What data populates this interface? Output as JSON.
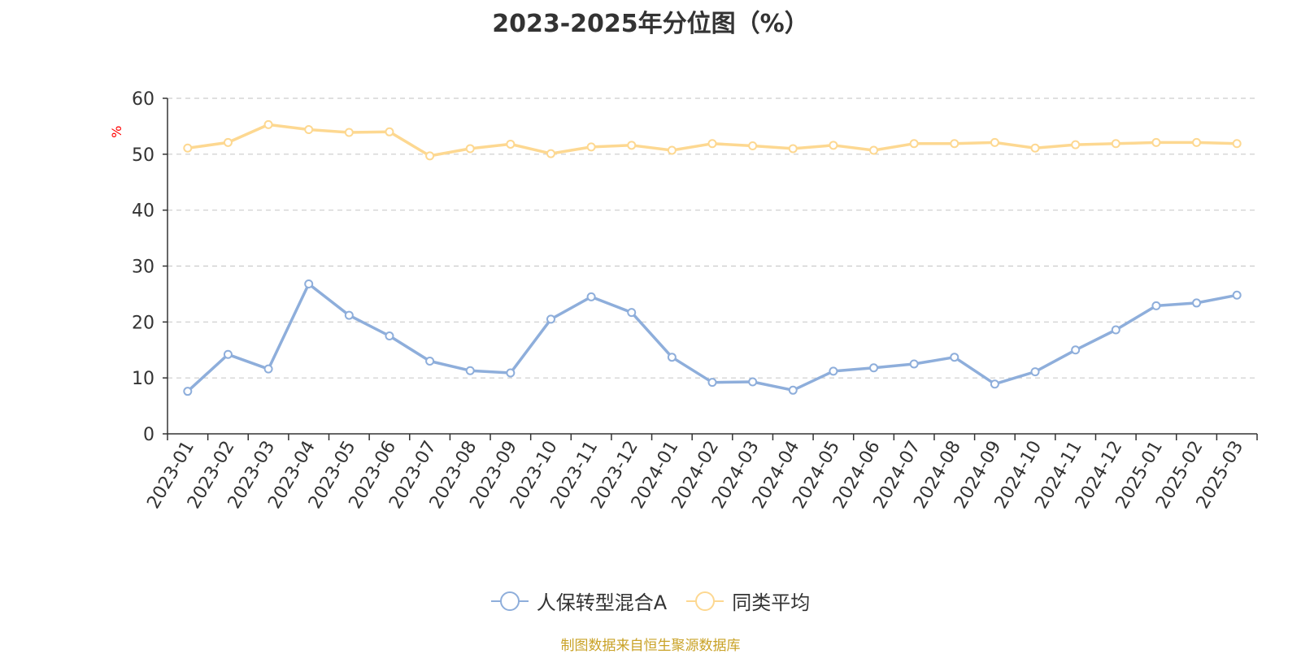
{
  "title": "2023-2025年分位图（%）",
  "source": "制图数据来自恒生聚源数据库",
  "chart_data": {
    "type": "line",
    "title": "2023-2025年分位图（%）",
    "ylabel": "%",
    "ylim": [
      0,
      60
    ],
    "yticks": [
      0,
      10,
      20,
      30,
      40,
      50,
      60
    ],
    "grid": true,
    "legend_position": "bottom-center",
    "categories": [
      "2023-01",
      "2023-02",
      "2023-03",
      "2023-04",
      "2023-05",
      "2023-06",
      "2023-07",
      "2023-08",
      "2023-09",
      "2023-10",
      "2023-11",
      "2023-12",
      "2024-01",
      "2024-02",
      "2024-03",
      "2024-04",
      "2024-05",
      "2024-06",
      "2024-07",
      "2024-08",
      "2024-09",
      "2024-10",
      "2024-11",
      "2024-12",
      "2025-01",
      "2025-02",
      "2025-03"
    ],
    "series": [
      {
        "name": "人保转型混合A",
        "color": "#8eaedb",
        "values": [
          7.6,
          14.2,
          11.6,
          26.8,
          21.2,
          17.5,
          13.0,
          11.3,
          10.9,
          20.5,
          24.5,
          21.7,
          13.7,
          9.2,
          9.3,
          7.8,
          11.2,
          11.8,
          12.5,
          13.7,
          8.9,
          11.1,
          15.0,
          18.6,
          22.9,
          23.4,
          24.8
        ]
      },
      {
        "name": "同类平均",
        "color": "#fdd891",
        "values": [
          51.1,
          52.1,
          55.3,
          54.4,
          53.9,
          54.0,
          49.7,
          51.0,
          51.8,
          50.1,
          51.3,
          51.6,
          50.7,
          51.9,
          51.5,
          51.0,
          51.6,
          50.7,
          51.9,
          51.9,
          52.1,
          51.1,
          51.7,
          51.9,
          52.1,
          52.1,
          51.9
        ]
      }
    ]
  }
}
